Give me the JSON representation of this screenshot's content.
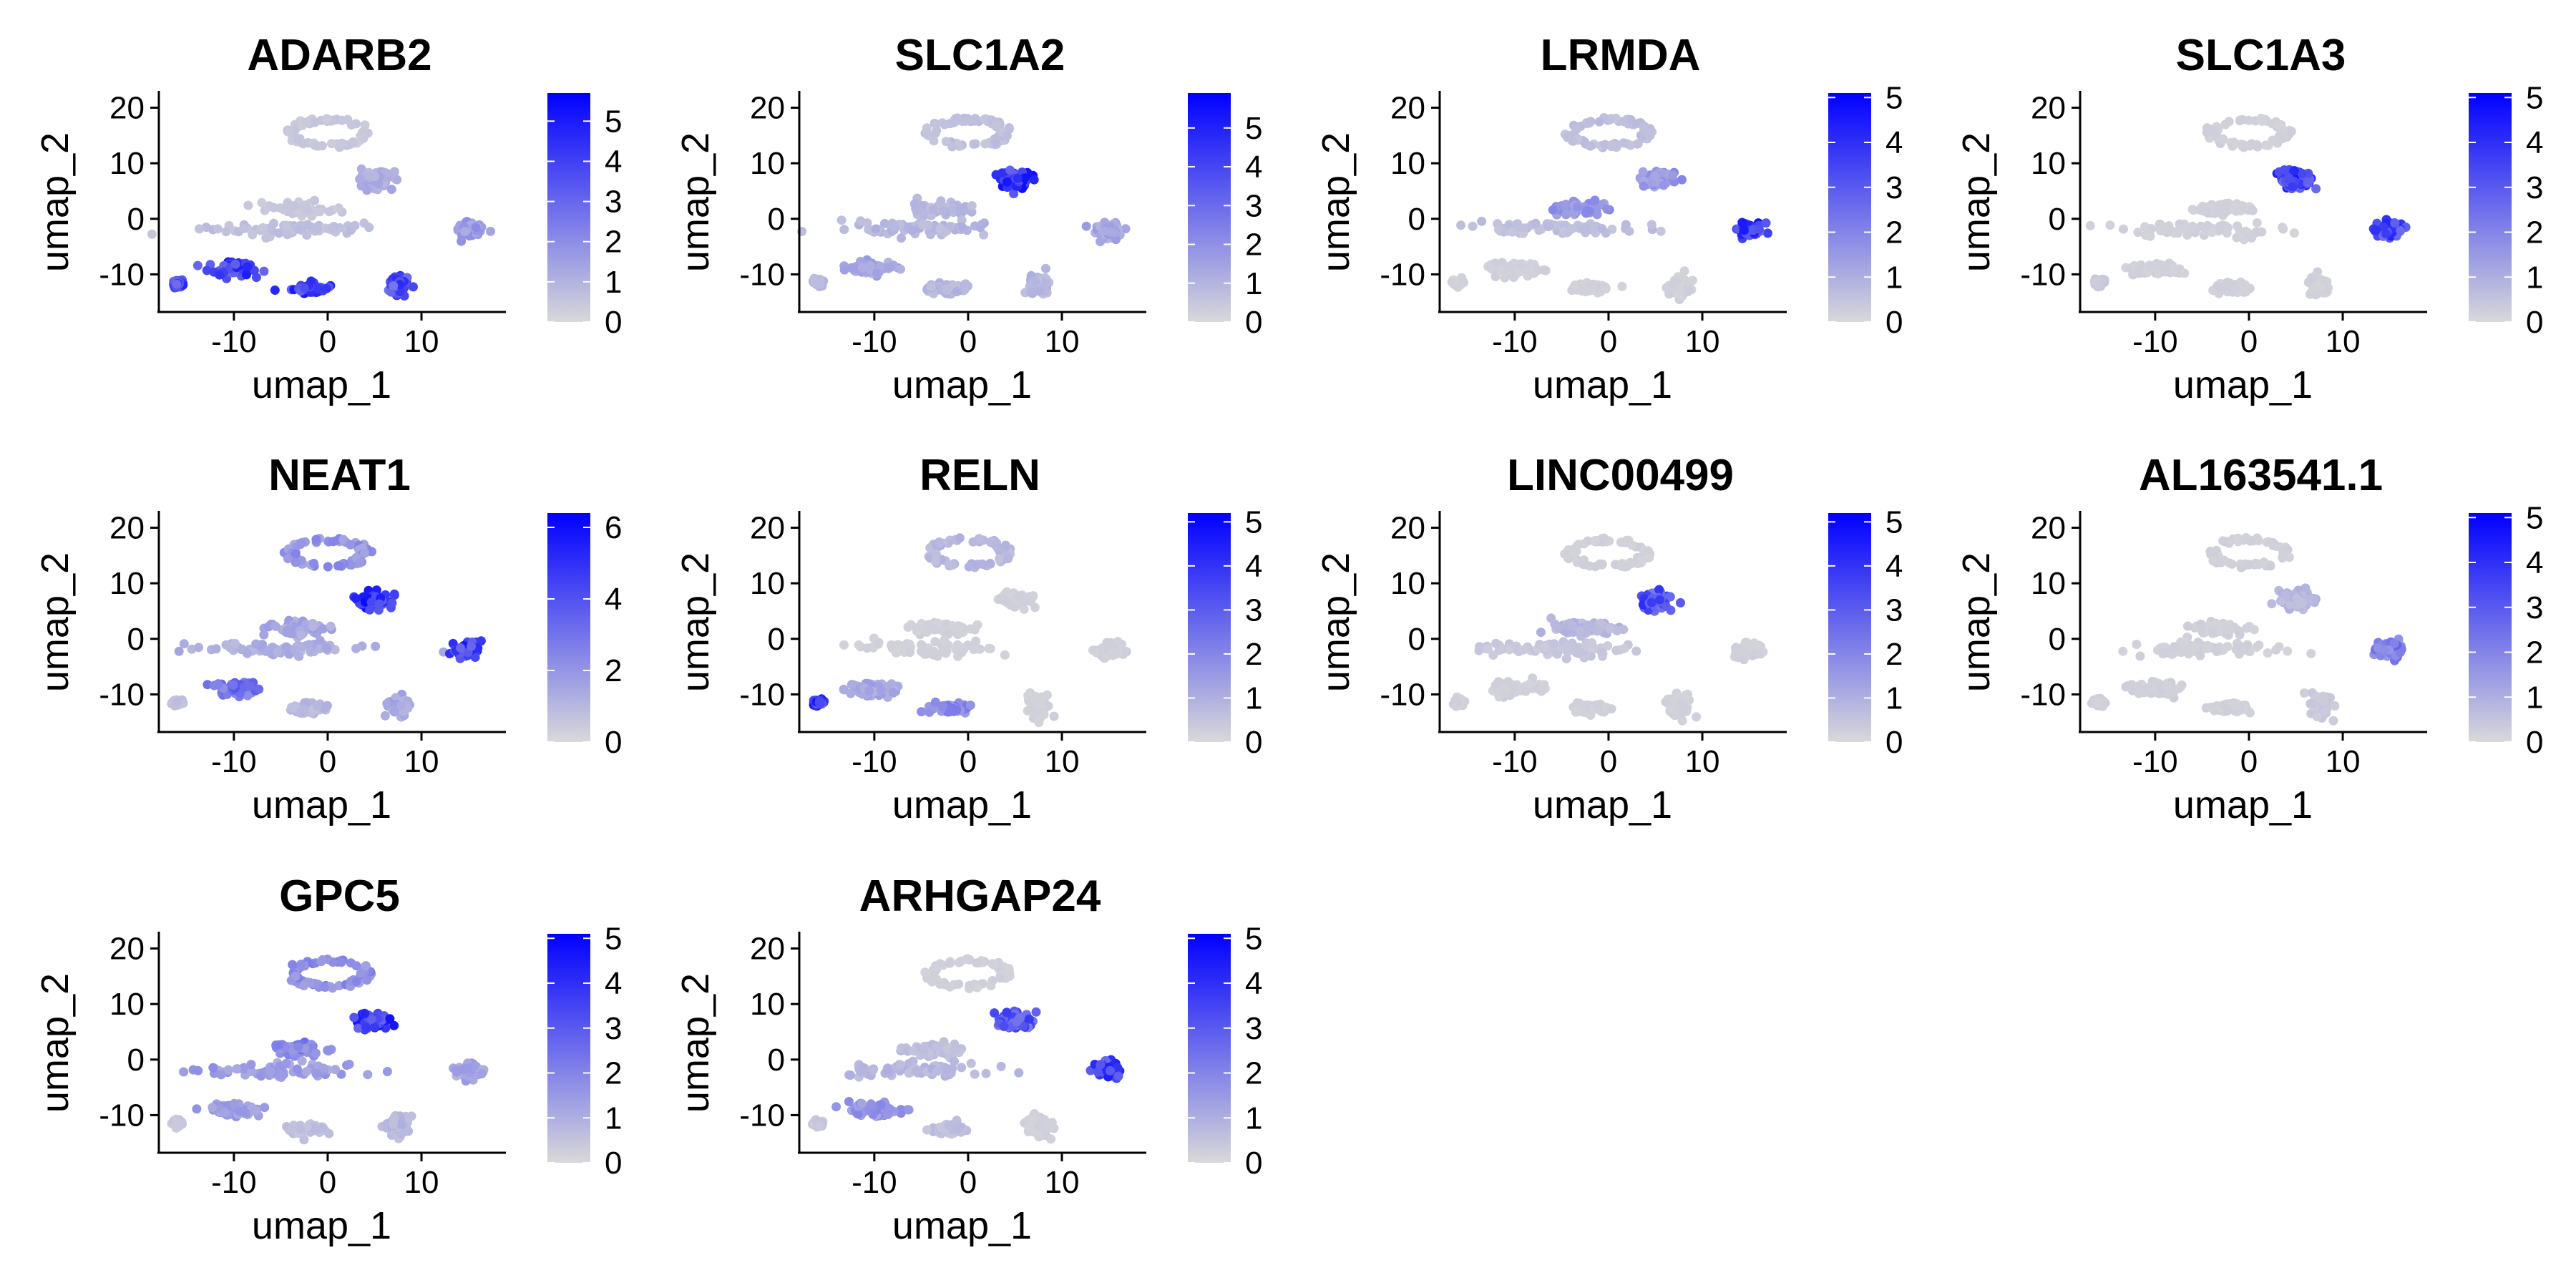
{
  "colors": {
    "low": "#d9d9d9",
    "high": "#0000ff",
    "axis": "#000000",
    "background": "#ffffff"
  },
  "chart_data": {
    "type": "scatter",
    "layout": "feature-plot grid, 4 columns",
    "shared": {
      "xlabel": "umap_1",
      "ylabel": "umap_2",
      "xticks": [
        -10,
        0,
        10
      ],
      "yticks": [
        20,
        10,
        0,
        -10
      ],
      "xlim": [
        -18,
        19
      ],
      "ylim": [
        -16,
        22
      ],
      "color_scale": "expression: grey (0) to blue (max)"
    },
    "clusters": [
      {
        "name": "top-ring",
        "cx": 0,
        "cy": 15.5,
        "sx": 4.5,
        "sy": 2.6
      },
      {
        "name": "upper-right-small",
        "cx": 5,
        "cy": 7,
        "sx": 2.0,
        "sy": 1.7
      },
      {
        "name": "middle-upper",
        "cx": -3,
        "cy": 1.8,
        "sx": 3.5,
        "sy": 1.2
      },
      {
        "name": "middle-long",
        "cx": -5,
        "cy": -1.8,
        "sx": 9.0,
        "sy": 1.4
      },
      {
        "name": "right",
        "cx": 15,
        "cy": -2,
        "sx": 1.6,
        "sy": 1.6
      },
      {
        "name": "bottom-left",
        "cx": -10,
        "cy": -9,
        "sx": 3.0,
        "sy": 1.3
      },
      {
        "name": "bottom-mid",
        "cx": -2,
        "cy": -12.5,
        "sx": 2.0,
        "sy": 0.9
      },
      {
        "name": "bottom-right",
        "cx": 7.5,
        "cy": -12,
        "sx": 1.3,
        "sy": 2.0
      },
      {
        "name": "far-left",
        "cx": -16,
        "cy": -11.5,
        "sx": 0.6,
        "sy": 0.6
      }
    ],
    "panels": [
      {
        "title": "ADARB2",
        "legend_max": 5.7,
        "legend_ticks": [
          0,
          1,
          2,
          3,
          4,
          5
        ],
        "intensity": [
          0.1,
          0.25,
          0.1,
          0.15,
          0.35,
          0.9,
          0.9,
          0.8,
          0.85
        ]
      },
      {
        "title": "SLC1A2",
        "legend_max": 5.9,
        "legend_ticks": [
          0,
          1,
          2,
          3,
          4,
          5
        ],
        "intensity": [
          0.15,
          0.95,
          0.2,
          0.2,
          0.3,
          0.3,
          0.2,
          0.2,
          0.2
        ]
      },
      {
        "title": "LRMDA",
        "legend_max": 5.1,
        "legend_ticks": [
          0,
          1,
          2,
          3,
          4,
          5
        ],
        "intensity": [
          0.15,
          0.4,
          0.4,
          0.15,
          0.95,
          0.05,
          0.05,
          0.05,
          0.05
        ]
      },
      {
        "title": "SLC1A3",
        "legend_max": 5.1,
        "legend_ticks": [
          0,
          1,
          2,
          3,
          4,
          5
        ],
        "intensity": [
          0.05,
          0.9,
          0.05,
          0.05,
          0.85,
          0.05,
          0.05,
          0.05,
          0.1
        ]
      },
      {
        "title": "NEAT1",
        "legend_max": 6.4,
        "legend_ticks": [
          0,
          2,
          4,
          6
        ],
        "intensity": [
          0.4,
          0.95,
          0.3,
          0.25,
          0.9,
          0.6,
          0.2,
          0.3,
          0.15
        ]
      },
      {
        "title": "RELN",
        "legend_max": 5.2,
        "legend_ticks": [
          0,
          1,
          2,
          3,
          4,
          5
        ],
        "intensity": [
          0.2,
          0.05,
          0.05,
          0.05,
          0.05,
          0.3,
          0.5,
          0.05,
          0.9
        ]
      },
      {
        "title": "LINC00499",
        "legend_max": 5.2,
        "legend_ticks": [
          0,
          1,
          2,
          3,
          4,
          5
        ],
        "intensity": [
          0.05,
          0.8,
          0.2,
          0.1,
          0.05,
          0.05,
          0.05,
          0.05,
          0.05
        ]
      },
      {
        "title": "AL163541.1",
        "legend_max": 5.1,
        "legend_ticks": [
          0,
          1,
          2,
          3,
          4,
          5
        ],
        "intensity": [
          0.05,
          0.2,
          0.05,
          0.05,
          0.55,
          0.05,
          0.05,
          0.1,
          0.05
        ]
      },
      {
        "title": "GPC5",
        "legend_max": 5.1,
        "legend_ticks": [
          0,
          1,
          2,
          3,
          4,
          5
        ],
        "intensity": [
          0.45,
          0.95,
          0.5,
          0.35,
          0.3,
          0.35,
          0.15,
          0.2,
          0.1
        ]
      },
      {
        "title": "ARHGAP24",
        "legend_max": 5.1,
        "legend_ticks": [
          0,
          1,
          2,
          3,
          4,
          5
        ],
        "intensity": [
          0.05,
          0.75,
          0.15,
          0.2,
          0.9,
          0.4,
          0.15,
          0.05,
          0.1
        ]
      }
    ]
  }
}
